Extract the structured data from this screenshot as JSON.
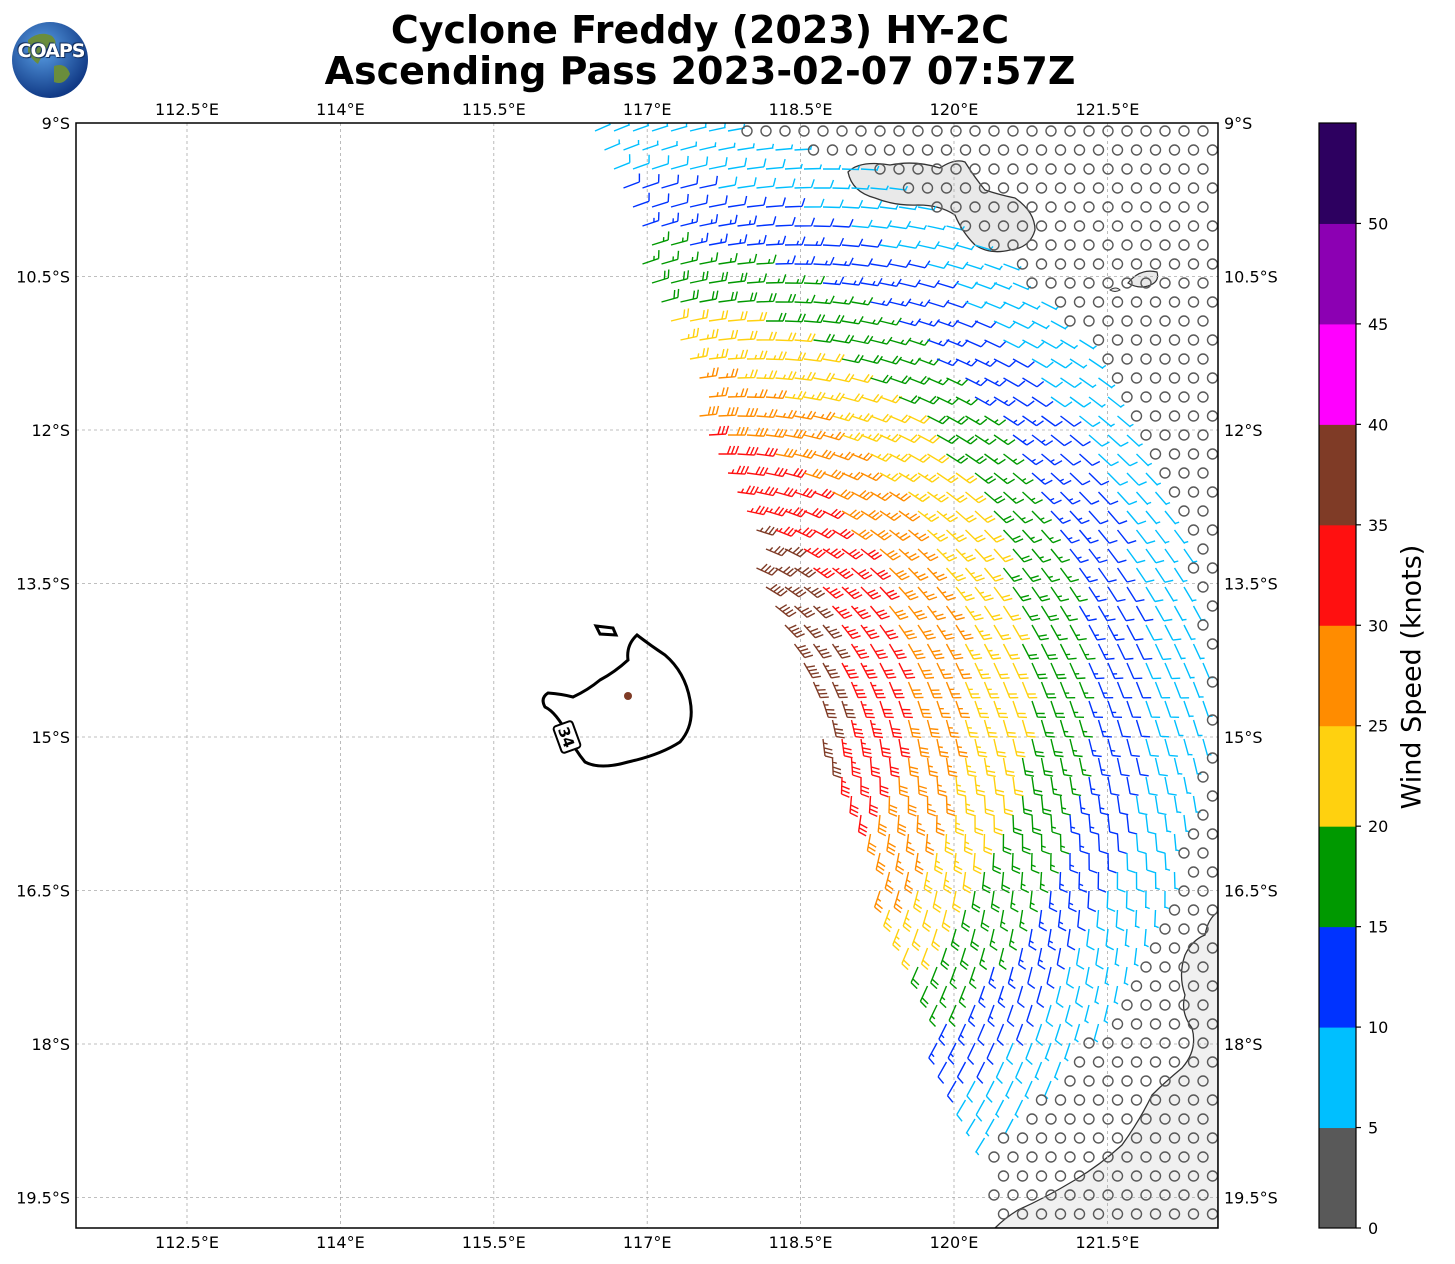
{
  "title_line1": "Cyclone Freddy (2023) HY-2C",
  "title_line2": "Ascending Pass 2023-02-07 07:57Z",
  "logo_text": "COAPS",
  "map": {
    "lon_ticks": [
      "112.5°E",
      "114°E",
      "115.5°E",
      "117°E",
      "118.5°E",
      "120°E",
      "121.5°E"
    ],
    "lat_ticks": [
      "9°S",
      "10.5°S",
      "12°S",
      "13.5°S",
      "15°S",
      "16.5°S",
      "18°S",
      "19.5°S"
    ],
    "grid": true,
    "contour_label": "34",
    "storm_center": {
      "lon": 116.85,
      "lat": 14.58
    }
  },
  "colorbar": {
    "label": "Wind Speed (knots)",
    "tick_labels": [
      "0",
      "5",
      "10",
      "15",
      "20",
      "25",
      "30",
      "35",
      "40",
      "45",
      "50"
    ],
    "colors": [
      "#595959",
      "#00bfff",
      "#0033ff",
      "#009900",
      "#ffd10f",
      "#ff8c00",
      "#ff1010",
      "#7f3b26",
      "#ff00ff",
      "#8c00b3",
      "#2d0060"
    ]
  }
}
